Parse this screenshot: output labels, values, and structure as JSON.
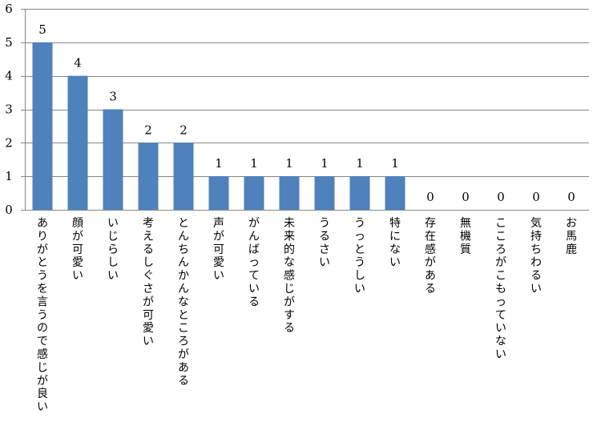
{
  "chart_data": {
    "type": "bar",
    "categories": [
      "ありがとうを言うので感じが良い",
      "顔が可愛い",
      "いじらしい",
      "考えるしぐさが可愛い",
      "とんちんかんなところがある",
      "声が可愛い",
      "がんばっている",
      "未来的な感じがする",
      "うるさい",
      "うっとうしい",
      "特にない",
      "存在感がある",
      "無機質",
      "こころがこもっていない",
      "気持ちわるい",
      "お馬鹿"
    ],
    "values": [
      5,
      4,
      3,
      2,
      2,
      1,
      1,
      1,
      1,
      1,
      1,
      0,
      0,
      0,
      0,
      0
    ],
    "yticks": [
      "0",
      "1",
      "2",
      "3",
      "4",
      "5",
      "6"
    ],
    "ylim": [
      0,
      6
    ],
    "grid": true,
    "legend": "none",
    "bar_color": "#4f81bd",
    "grid_color": "#868686"
  }
}
